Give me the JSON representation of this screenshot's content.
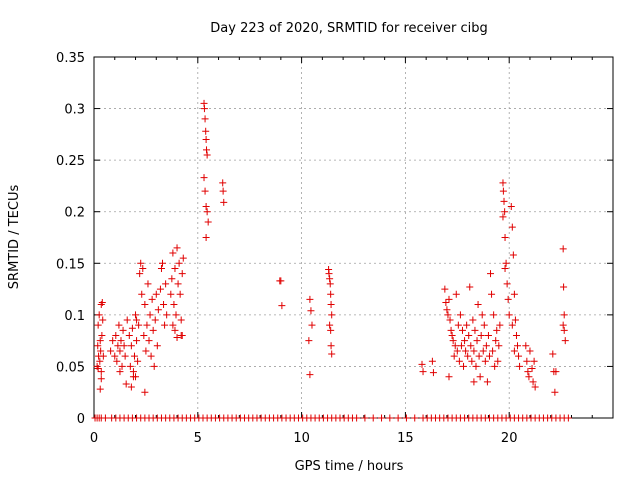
{
  "chart_data": {
    "type": "scatter",
    "title": "Day 223 of 2020, SRMTID for receiver cibg",
    "xlabel": "GPS time / hours",
    "ylabel": "SRMTID / TECUs",
    "xlim": [
      0,
      25
    ],
    "ylim": [
      0,
      0.35
    ],
    "x_ticks": [
      "0",
      "5",
      "10",
      "15",
      "20"
    ],
    "y_ticks": [
      "0",
      "0.05",
      "0.1",
      "0.15",
      "0.2",
      "0.25",
      "0.3",
      "0.35"
    ],
    "grid": true,
    "marker": "plus",
    "color": "#e00000",
    "series": [
      {
        "name": "SRMTID",
        "points": [
          [
            0.15,
            0.05
          ],
          [
            0.18,
            0.07
          ],
          [
            0.2,
            0.09
          ],
          [
            0.22,
            0.06
          ],
          [
            0.25,
            0.1
          ],
          [
            0.28,
            0.055
          ],
          [
            0.3,
            0.075
          ],
          [
            0.32,
            0.065
          ],
          [
            0.35,
            0.11
          ],
          [
            0.35,
            0.045
          ],
          [
            0.38,
            0.08
          ],
          [
            0.4,
            0.112
          ],
          [
            0.42,
            0.095
          ],
          [
            0.45,
            0.06
          ],
          [
            0.3,
            0.028
          ],
          [
            0.35,
            0.038
          ],
          [
            0.2,
            0.048
          ],
          [
            0.8,
            0.065
          ],
          [
            0.9,
            0.075
          ],
          [
            1.0,
            0.06
          ],
          [
            1.05,
            0.08
          ],
          [
            1.1,
            0.055
          ],
          [
            1.15,
            0.07
          ],
          [
            1.2,
            0.09
          ],
          [
            1.25,
            0.065
          ],
          [
            1.3,
            0.075
          ],
          [
            1.35,
            0.05
          ],
          [
            1.4,
            0.085
          ],
          [
            1.45,
            0.07
          ],
          [
            1.5,
            0.06
          ],
          [
            1.6,
            0.095
          ],
          [
            1.55,
            0.033
          ],
          [
            1.25,
            0.045
          ],
          [
            1.7,
            0.08
          ],
          [
            1.75,
            0.05
          ],
          [
            1.8,
            0.07
          ],
          [
            1.85,
            0.087
          ],
          [
            1.9,
            0.045
          ],
          [
            1.95,
            0.06
          ],
          [
            2.0,
            0.1
          ],
          [
            2.05,
            0.075
          ],
          [
            2.1,
            0.055
          ],
          [
            2.15,
            0.09
          ],
          [
            1.8,
            0.03
          ],
          [
            1.9,
            0.04
          ],
          [
            2.0,
            0.04
          ],
          [
            2.05,
            0.095
          ],
          [
            2.2,
            0.14
          ],
          [
            2.25,
            0.15
          ],
          [
            2.3,
            0.12
          ],
          [
            2.35,
            0.145
          ],
          [
            2.4,
            0.08
          ],
          [
            2.45,
            0.11
          ],
          [
            2.5,
            0.065
          ],
          [
            2.55,
            0.09
          ],
          [
            2.6,
            0.13
          ],
          [
            2.65,
            0.075
          ],
          [
            2.7,
            0.1
          ],
          [
            2.75,
            0.06
          ],
          [
            2.8,
            0.115
          ],
          [
            2.85,
            0.085
          ],
          [
            2.9,
            0.05
          ],
          [
            2.95,
            0.095
          ],
          [
            3.0,
            0.12
          ],
          [
            3.05,
            0.07
          ],
          [
            3.1,
            0.105
          ],
          [
            2.45,
            0.025
          ],
          [
            3.2,
            0.125
          ],
          [
            3.25,
            0.145
          ],
          [
            3.3,
            0.15
          ],
          [
            3.35,
            0.11
          ],
          [
            3.4,
            0.09
          ],
          [
            3.45,
            0.13
          ],
          [
            3.5,
            0.1
          ],
          [
            3.7,
            0.12
          ],
          [
            3.75,
            0.135
          ],
          [
            3.8,
            0.16
          ],
          [
            3.85,
            0.11
          ],
          [
            3.9,
            0.145
          ],
          [
            3.95,
            0.1
          ],
          [
            4.0,
            0.165
          ],
          [
            4.05,
            0.13
          ],
          [
            4.1,
            0.15
          ],
          [
            4.15,
            0.12
          ],
          [
            4.2,
            0.095
          ],
          [
            4.25,
            0.14
          ],
          [
            4.3,
            0.155
          ],
          [
            3.8,
            0.09
          ],
          [
            3.9,
            0.085
          ],
          [
            4.0,
            0.078
          ],
          [
            4.2,
            0.08
          ],
          [
            4.25,
            0.08
          ],
          [
            5.3,
            0.305
          ],
          [
            5.32,
            0.3
          ],
          [
            5.35,
            0.29
          ],
          [
            5.38,
            0.278
          ],
          [
            5.4,
            0.27
          ],
          [
            5.42,
            0.26
          ],
          [
            5.45,
            0.255
          ],
          [
            5.3,
            0.233
          ],
          [
            5.35,
            0.22
          ],
          [
            5.4,
            0.205
          ],
          [
            5.45,
            0.2
          ],
          [
            5.5,
            0.19
          ],
          [
            5.4,
            0.175
          ],
          [
            6.2,
            0.228
          ],
          [
            6.22,
            0.22
          ],
          [
            6.25,
            0.209
          ],
          [
            8.95,
            0.133
          ],
          [
            9.0,
            0.133
          ],
          [
            9.05,
            0.109
          ],
          [
            10.4,
            0.115
          ],
          [
            10.45,
            0.104
          ],
          [
            10.5,
            0.09
          ],
          [
            10.35,
            0.075
          ],
          [
            10.4,
            0.042
          ],
          [
            11.3,
            0.144
          ],
          [
            11.32,
            0.14
          ],
          [
            11.35,
            0.135
          ],
          [
            11.38,
            0.13
          ],
          [
            11.4,
            0.12
          ],
          [
            11.42,
            0.11
          ],
          [
            11.45,
            0.1
          ],
          [
            11.35,
            0.09
          ],
          [
            11.4,
            0.085
          ],
          [
            11.42,
            0.07
          ],
          [
            11.45,
            0.062
          ],
          [
            15.8,
            0.052
          ],
          [
            15.85,
            0.045
          ],
          [
            16.3,
            0.055
          ],
          [
            16.35,
            0.044
          ],
          [
            16.9,
            0.125
          ],
          [
            16.95,
            0.112
          ],
          [
            17.0,
            0.105
          ],
          [
            17.05,
            0.1
          ],
          [
            17.1,
            0.115
          ],
          [
            17.15,
            0.095
          ],
          [
            17.2,
            0.085
          ],
          [
            17.25,
            0.08
          ],
          [
            17.3,
            0.075
          ],
          [
            17.35,
            0.06
          ],
          [
            17.4,
            0.07
          ],
          [
            17.45,
            0.12
          ],
          [
            17.5,
            0.065
          ],
          [
            17.55,
            0.09
          ],
          [
            17.6,
            0.055
          ],
          [
            17.65,
            0.1
          ],
          [
            17.7,
            0.07
          ],
          [
            17.75,
            0.085
          ],
          [
            17.8,
            0.05
          ],
          [
            17.85,
            0.075
          ],
          [
            17.9,
            0.065
          ],
          [
            17.95,
            0.09
          ],
          [
            18.0,
            0.06
          ],
          [
            18.05,
            0.08
          ],
          [
            18.1,
            0.127
          ],
          [
            18.15,
            0.07
          ],
          [
            18.2,
            0.055
          ],
          [
            18.25,
            0.095
          ],
          [
            18.3,
            0.065
          ],
          [
            18.35,
            0.085
          ],
          [
            18.4,
            0.05
          ],
          [
            18.45,
            0.075
          ],
          [
            18.5,
            0.11
          ],
          [
            18.55,
            0.06
          ],
          [
            18.6,
            0.04
          ],
          [
            18.65,
            0.08
          ],
          [
            18.7,
            0.1
          ],
          [
            18.75,
            0.065
          ],
          [
            18.8,
            0.09
          ],
          [
            18.85,
            0.055
          ],
          [
            18.9,
            0.07
          ],
          [
            18.95,
            0.035
          ],
          [
            19.0,
            0.08
          ],
          [
            19.05,
            0.06
          ],
          [
            19.1,
            0.14
          ],
          [
            19.15,
            0.12
          ],
          [
            19.2,
            0.065
          ],
          [
            19.25,
            0.1
          ],
          [
            19.3,
            0.05
          ],
          [
            19.35,
            0.075
          ],
          [
            19.4,
            0.085
          ],
          [
            19.45,
            0.055
          ],
          [
            19.5,
            0.07
          ],
          [
            19.55,
            0.09
          ],
          [
            17.1,
            0.04
          ],
          [
            18.3,
            0.035
          ],
          [
            19.7,
            0.228
          ],
          [
            19.72,
            0.22
          ],
          [
            19.75,
            0.21
          ],
          [
            19.78,
            0.2
          ],
          [
            19.7,
            0.195
          ],
          [
            19.8,
            0.175
          ],
          [
            19.85,
            0.15
          ],
          [
            19.9,
            0.13
          ],
          [
            19.95,
            0.115
          ],
          [
            20.0,
            0.1
          ],
          [
            19.8,
            0.145
          ],
          [
            20.1,
            0.205
          ],
          [
            20.15,
            0.185
          ],
          [
            20.2,
            0.158
          ],
          [
            20.25,
            0.12
          ],
          [
            20.3,
            0.095
          ],
          [
            20.35,
            0.08
          ],
          [
            20.4,
            0.07
          ],
          [
            20.45,
            0.06
          ],
          [
            20.5,
            0.05
          ],
          [
            20.15,
            0.09
          ],
          [
            20.25,
            0.065
          ],
          [
            20.8,
            0.07
          ],
          [
            20.85,
            0.055
          ],
          [
            20.9,
            0.045
          ],
          [
            20.95,
            0.04
          ],
          [
            21.0,
            0.065
          ],
          [
            21.1,
            0.048
          ],
          [
            21.15,
            0.035
          ],
          [
            21.2,
            0.055
          ],
          [
            21.25,
            0.03
          ],
          [
            22.1,
            0.062
          ],
          [
            22.15,
            0.045
          ],
          [
            22.2,
            0.025
          ],
          [
            22.25,
            0.045
          ],
          [
            22.6,
            0.164
          ],
          [
            22.62,
            0.127
          ],
          [
            22.65,
            0.1
          ],
          [
            22.6,
            0.09
          ],
          [
            22.65,
            0.085
          ],
          [
            22.7,
            0.075
          ]
        ]
      }
    ],
    "zero_points_x": [
      0.05,
      0.15,
      0.25,
      0.35,
      0.55,
      0.85,
      1.05,
      1.25,
      1.45,
      1.65,
      1.85,
      2.05,
      2.25,
      2.45,
      2.65,
      2.85,
      3.05,
      3.25,
      3.45,
      3.65,
      3.85,
      4.05,
      4.25,
      4.45,
      4.65,
      4.85,
      5.05,
      5.25,
      5.45,
      5.65,
      5.85,
      6.05,
      6.25,
      6.45,
      6.65,
      6.85,
      7.05,
      7.25,
      7.45,
      7.65,
      7.85,
      8.05,
      8.25,
      8.45,
      8.65,
      8.85,
      9.05,
      9.25,
      9.45,
      9.65,
      9.85,
      10.05,
      10.25,
      10.45,
      10.65,
      10.85,
      11.05,
      11.25,
      11.45,
      11.65,
      11.85,
      12.05,
      12.25,
      12.45,
      12.65,
      13.05,
      13.45,
      13.85,
      14.25,
      14.65,
      15.05,
      15.45,
      15.85,
      16.05,
      16.25,
      16.45,
      16.65,
      16.85,
      17.05,
      17.25,
      17.45,
      17.65,
      17.85,
      18.05,
      18.25,
      18.45,
      18.65,
      18.85,
      19.05,
      19.25,
      19.45,
      19.65,
      19.85,
      20.05,
      20.25,
      20.45,
      20.65,
      20.85,
      21.05,
      21.25,
      21.45,
      21.65,
      21.85,
      22.05,
      22.25,
      22.45,
      22.65,
      22.85
    ]
  }
}
